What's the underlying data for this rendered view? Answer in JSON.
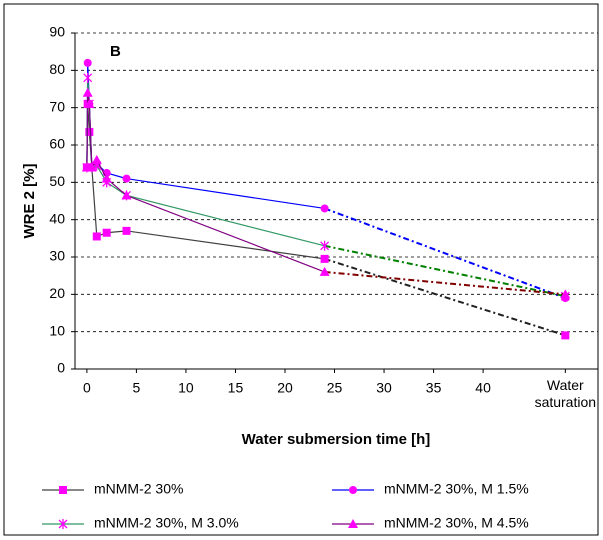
{
  "chart_data": {
    "type": "line",
    "panel_label": "B",
    "x_label": "Water submersion time [h]",
    "y_label": "WRE 2 [%]",
    "x": [
      0,
      0.083,
      0.25,
      0.5,
      1,
      2,
      4,
      24,
      48.3
    ],
    "xlim": [
      -1.2,
      51.6
    ],
    "xticks": [
      0,
      5,
      10,
      15,
      20,
      25,
      30,
      35,
      40,
      {
        "value": 48.3,
        "label": "Water saturation"
      }
    ],
    "ylim": [
      0,
      90
    ],
    "yticks": [
      0,
      10,
      20,
      30,
      40,
      50,
      60,
      70,
      80,
      90
    ],
    "grid": true,
    "marker_color": "#ff00ff",
    "series": [
      {
        "name": "mNMM-2 30%",
        "color": "#404040",
        "dash_color": "#202020",
        "marker": "square",
        "values": [
          54,
          71,
          63.5,
          54,
          35.5,
          36.5,
          37,
          29.5,
          9
        ]
      },
      {
        "name": "mNMM-2 30%, M 1.5%",
        "color": "#0000ff",
        "dash_color": "#0000ff",
        "marker": "circle",
        "values": [
          54,
          82,
          71,
          54,
          55,
          52.5,
          51,
          43,
          19
        ]
      },
      {
        "name": "mNMM-2 30%, M 3.0%",
        "color": "#339966",
        "dash_color": "#008000",
        "marker": "star",
        "values": [
          54,
          78,
          71,
          54,
          54.5,
          50,
          46.5,
          33,
          19.5
        ]
      },
      {
        "name": "mNMM-2 30%, M 4.5%",
        "color": "#800080",
        "dash_color": "#800000",
        "marker": "triangle",
        "values": [
          54,
          74,
          71,
          54,
          56,
          51,
          46.5,
          26,
          20
        ]
      }
    ]
  }
}
